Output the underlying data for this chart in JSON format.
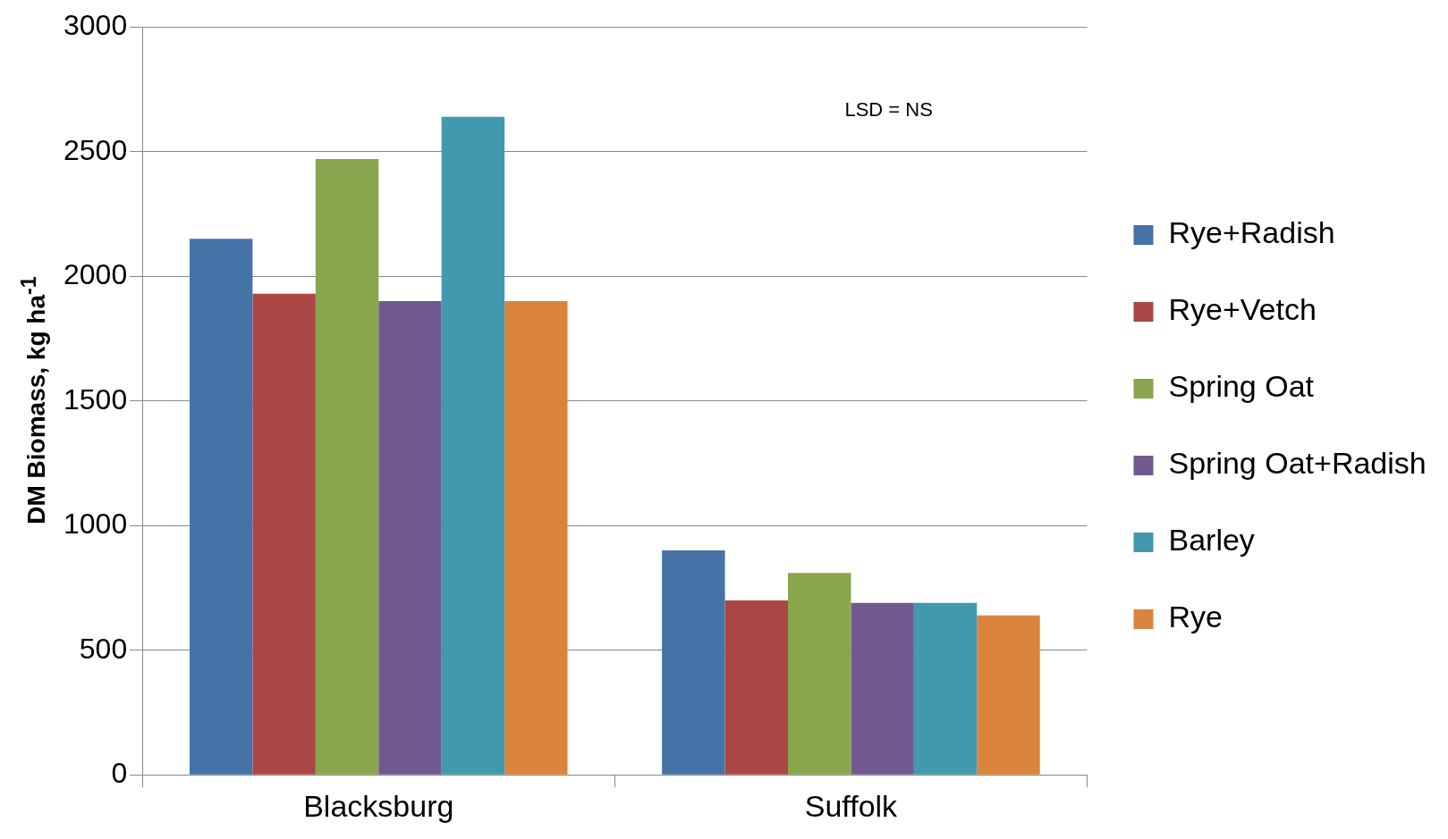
{
  "chart_data": {
    "type": "bar",
    "ylabel": "DM Biomass, kg ha$^{-1}$",
    "categories": [
      "Blacksburg",
      "Suffolk"
    ],
    "series": [
      {
        "name": "Rye+Radish",
        "color": "#4572a7",
        "values": [
          2150,
          900
        ]
      },
      {
        "name": "Rye+Vetch",
        "color": "#aa4643",
        "values": [
          1930,
          700
        ]
      },
      {
        "name": "Spring Oat",
        "color": "#89a54e",
        "values": [
          2470,
          810
        ]
      },
      {
        "name": "Spring Oat+Radish",
        "color": "#71588f",
        "values": [
          1900,
          690
        ]
      },
      {
        "name": "Barley",
        "color": "#4198af",
        "values": [
          2640,
          690
        ]
      },
      {
        "name": "Rye",
        "color": "#db843d",
        "values": [
          1900,
          640
        ]
      }
    ],
    "ylim": [
      0,
      3000
    ],
    "yticks": [
      0,
      500,
      1000,
      1500,
      2000,
      2500,
      3000
    ],
    "grid": "y",
    "legend": "right",
    "annotations": [
      "LSD = NS"
    ]
  }
}
